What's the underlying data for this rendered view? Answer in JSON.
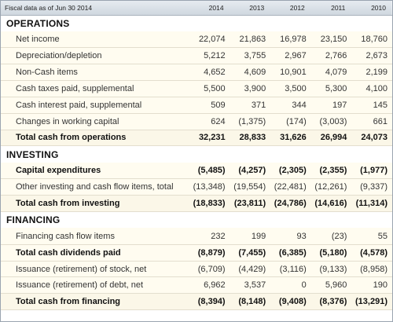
{
  "header": {
    "label": "Fiscal data as of Jun 30 2014",
    "years": [
      "2014",
      "2013",
      "2012",
      "2011",
      "2010"
    ]
  },
  "sections": [
    {
      "title": "OPERATIONS",
      "rows": [
        {
          "label": "Net income",
          "bold": false,
          "values": [
            "22,074",
            "21,863",
            "16,978",
            "23,150",
            "18,760"
          ]
        },
        {
          "label": "Depreciation/depletion",
          "bold": false,
          "values": [
            "5,212",
            "3,755",
            "2,967",
            "2,766",
            "2,673"
          ]
        },
        {
          "label": "Non-Cash items",
          "bold": false,
          "values": [
            "4,652",
            "4,609",
            "10,901",
            "4,079",
            "2,199"
          ]
        },
        {
          "label": "Cash taxes paid, supplemental",
          "bold": false,
          "values": [
            "5,500",
            "3,900",
            "3,500",
            "5,300",
            "4,100"
          ]
        },
        {
          "label": "Cash interest paid, supplemental",
          "bold": false,
          "values": [
            "509",
            "371",
            "344",
            "197",
            "145"
          ]
        },
        {
          "label": "Changes in working capital",
          "bold": false,
          "values": [
            "624",
            "(1,375)",
            "(174)",
            "(3,003)",
            "661"
          ]
        },
        {
          "label": "Total cash from operations",
          "bold": true,
          "values": [
            "32,231",
            "28,833",
            "31,626",
            "26,994",
            "24,073"
          ]
        }
      ]
    },
    {
      "title": "INVESTING",
      "rows": [
        {
          "label": "Capital expenditures",
          "bold": true,
          "values": [
            "(5,485)",
            "(4,257)",
            "(2,305)",
            "(2,355)",
            "(1,977)"
          ]
        },
        {
          "label": "Other investing and cash flow items, total",
          "bold": false,
          "values": [
            "(13,348)",
            "(19,554)",
            "(22,481)",
            "(12,261)",
            "(9,337)"
          ]
        },
        {
          "label": "Total cash from investing",
          "bold": true,
          "values": [
            "(18,833)",
            "(23,811)",
            "(24,786)",
            "(14,616)",
            "(11,314)"
          ]
        }
      ]
    },
    {
      "title": "FINANCING",
      "rows": [
        {
          "label": "Financing cash flow items",
          "bold": false,
          "values": [
            "232",
            "199",
            "93",
            "(23)",
            "55"
          ]
        },
        {
          "label": "Total cash dividends paid",
          "bold": true,
          "values": [
            "(8,879)",
            "(7,455)",
            "(6,385)",
            "(5,180)",
            "(4,578)"
          ]
        },
        {
          "label": "Issuance (retirement) of stock, net",
          "bold": false,
          "values": [
            "(6,709)",
            "(4,429)",
            "(3,116)",
            "(9,133)",
            "(8,958)"
          ]
        },
        {
          "label": "Issuance (retirement) of debt, net",
          "bold": false,
          "values": [
            "6,962",
            "3,537",
            "0",
            "5,960",
            "190"
          ]
        },
        {
          "label": "Total cash from financing",
          "bold": true,
          "values": [
            "(8,394)",
            "(8,148)",
            "(9,408)",
            "(8,376)",
            "(13,291)"
          ]
        }
      ]
    }
  ]
}
